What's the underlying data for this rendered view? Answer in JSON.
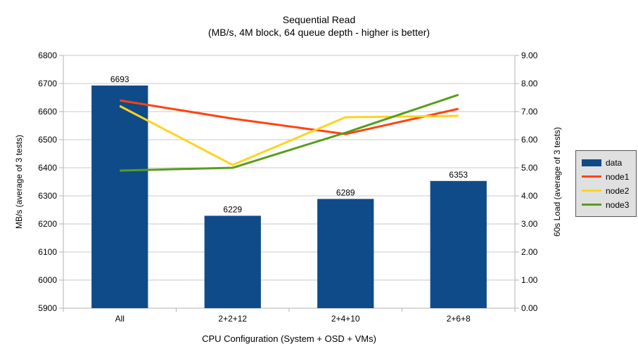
{
  "title": {
    "line1": "Sequential Read",
    "line2": "(MB/s, 4M block, 64 queue depth - higher is better)"
  },
  "chart_data": {
    "type": "composite-bar-line",
    "categories": [
      "All",
      "2+2+12",
      "2+4+10",
      "2+6+8"
    ],
    "bar_series": {
      "name": "data",
      "color": "#0f4b89",
      "axis": "left",
      "values": [
        6693,
        6229,
        6289,
        6353
      ]
    },
    "line_series": [
      {
        "name": "node1",
        "color": "#ff420e",
        "axis": "right",
        "values": [
          7.4,
          6.75,
          6.2,
          7.1
        ]
      },
      {
        "name": "node2",
        "color": "#ffd320",
        "axis": "right",
        "values": [
          7.2,
          5.1,
          6.8,
          6.85
        ]
      },
      {
        "name": "node3",
        "color": "#579d1c",
        "axis": "right",
        "values": [
          4.9,
          5.0,
          6.25,
          7.6
        ]
      }
    ],
    "xlabel": "CPU Configuration (System + OSD + VMs)",
    "left_axis": {
      "label": "MB/s (average of 3 tests)",
      "min": 5900,
      "max": 6800,
      "step": 100
    },
    "right_axis": {
      "label": "60s Load (average of 3 tests)",
      "min": 0,
      "max": 9,
      "step": 1,
      "decimals": 2
    },
    "grid": true,
    "legend_position": "right",
    "legend_entries": [
      "data",
      "node1",
      "node2",
      "node3"
    ]
  },
  "colors": {
    "grid": "#c9c9c9",
    "axis": "#b3b3b3",
    "text": "#000000",
    "legend_bg": "#e0e0e0",
    "legend_border": "#555555"
  }
}
